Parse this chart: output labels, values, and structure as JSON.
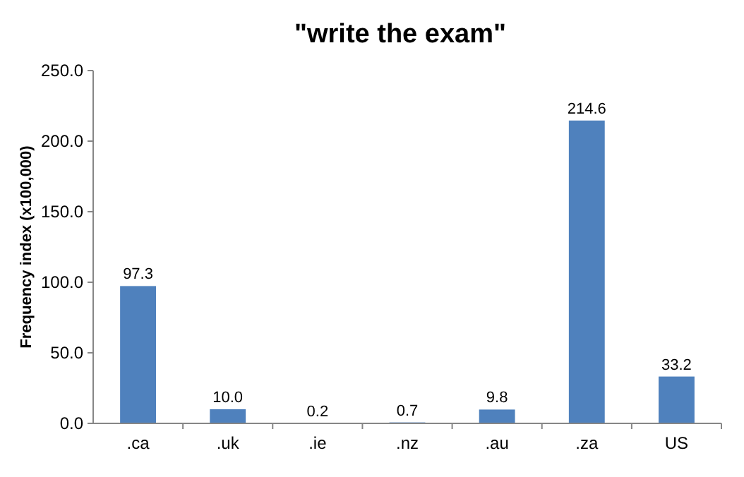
{
  "chart_data": {
    "type": "bar",
    "title": "\"write the exam\"",
    "ylabel": "Frequency index (x100,000)",
    "categories": [
      ".ca",
      ".uk",
      ".ie",
      ".nz",
      ".au",
      ".za",
      "US"
    ],
    "values": [
      97.3,
      10.0,
      0.2,
      0.7,
      9.8,
      214.6,
      33.2
    ],
    "value_labels": [
      "97.3",
      "10.0",
      "0.2",
      "0.7",
      "9.8",
      "214.6",
      "33.2"
    ],
    "color": "#4f81bd",
    "ylim": [
      0,
      250
    ],
    "yticks": [
      {
        "value": 0,
        "label": "0.0"
      },
      {
        "value": 50,
        "label": "50.0"
      },
      {
        "value": 100,
        "label": "100.0"
      },
      {
        "value": 150,
        "label": "150.0"
      },
      {
        "value": 200,
        "label": "200.0"
      },
      {
        "value": 250,
        "label": "250.0"
      }
    ],
    "grid": false
  }
}
